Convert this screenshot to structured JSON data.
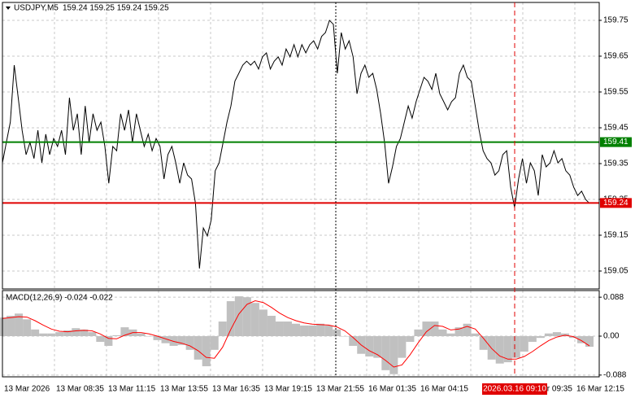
{
  "chart_data": [
    {
      "type": "line",
      "title": "USDJPY,M5",
      "subtitle": "159.24 159.25 159.24 159.25",
      "color": "#000000",
      "values": [
        159.352,
        159.409,
        159.466,
        159.625,
        159.534,
        159.443,
        159.375,
        159.409,
        159.364,
        159.443,
        159.352,
        159.432,
        159.375,
        159.42,
        159.398,
        159.443,
        159.375,
        159.534,
        159.443,
        159.489,
        159.375,
        159.511,
        159.409,
        159.489,
        159.443,
        159.466,
        159.398,
        159.295,
        159.398,
        159.386,
        159.489,
        159.443,
        159.5,
        159.409,
        159.489,
        159.443,
        159.398,
        159.432,
        159.386,
        159.42,
        159.398,
        159.307,
        159.375,
        159.398,
        159.352,
        159.295,
        159.352,
        159.318,
        159.307,
        159.239,
        159.057,
        159.17,
        159.148,
        159.193,
        159.33,
        159.352,
        159.409,
        159.466,
        159.511,
        159.58,
        159.602,
        159.625,
        159.636,
        159.625,
        159.636,
        159.614,
        159.648,
        159.659,
        159.614,
        159.636,
        159.648,
        159.625,
        159.67,
        159.648,
        159.682,
        159.648,
        159.682,
        159.659,
        159.682,
        159.693,
        159.67,
        159.705,
        159.716,
        159.75,
        159.739,
        159.602,
        159.716,
        159.67,
        159.693,
        159.648,
        159.545,
        159.602,
        159.625,
        159.591,
        159.602,
        159.557,
        159.489,
        159.409,
        159.295,
        159.341,
        159.398,
        159.42,
        159.466,
        159.511,
        159.477,
        159.523,
        159.557,
        159.591,
        159.58,
        159.557,
        159.602,
        159.545,
        159.523,
        159.5,
        159.523,
        159.534,
        159.602,
        159.625,
        159.591,
        159.58,
        159.511,
        159.443,
        159.386,
        159.364,
        159.352,
        159.318,
        159.33,
        159.375,
        159.386,
        159.284,
        159.227,
        159.307,
        159.364,
        159.295,
        159.352,
        159.33,
        159.261,
        159.375,
        159.341,
        159.352,
        159.386,
        159.352,
        159.364,
        159.33,
        159.318,
        159.284,
        159.261,
        159.273,
        159.25,
        159.239
      ],
      "ylim": [
        159.0,
        159.8
      ],
      "yticks": [
        159.75,
        159.65,
        159.55,
        159.45,
        159.35,
        159.25,
        159.15,
        159.05
      ],
      "grid": true,
      "levels": [
        {
          "value": 159.41,
          "label": "159.41",
          "color": "#008000"
        },
        {
          "value": 159.24,
          "label": "159.24",
          "color": "#e00000"
        }
      ]
    },
    {
      "type": "macd",
      "title": "MACD(12,26,9) -0.024 -0.022",
      "series": [
        {
          "color": "#c0c0c0",
          "values": [
            0.042,
            0.046,
            0.051,
            0.038,
            0.015,
            0.006,
            0.006,
            0.009,
            0.013,
            0.018,
            0.015,
            0.009,
            -0.013,
            -0.022,
            0.002,
            0.02,
            0.015,
            0.006,
            0.0,
            -0.009,
            -0.016,
            -0.022,
            -0.02,
            -0.031,
            -0.053,
            -0.068,
            -0.031,
            0.033,
            0.079,
            0.09,
            0.088,
            0.075,
            0.06,
            0.046,
            0.033,
            0.033,
            0.028,
            0.024,
            0.024,
            0.028,
            0.024,
            0.015,
            0.0,
            -0.022,
            -0.04,
            -0.046,
            -0.049,
            -0.077,
            -0.086,
            -0.049,
            -0.013,
            0.015,
            0.033,
            0.033,
            0.015,
            0.006,
            0.02,
            0.028,
            0.006,
            -0.031,
            -0.053,
            -0.062,
            -0.059,
            -0.049,
            -0.035,
            -0.013,
            -0.004,
            0.006,
            0.009,
            0.006,
            -0.004,
            -0.016,
            -0.024
          ]
        },
        {
          "color": "#ff0000",
          "values": [
            0.04,
            0.042,
            0.044,
            0.043,
            0.035,
            0.025,
            0.016,
            0.011,
            0.01,
            0.012,
            0.013,
            0.012,
            0.005,
            -0.005,
            -0.006,
            0.002,
            0.008,
            0.008,
            0.005,
            0.0,
            -0.006,
            -0.012,
            -0.016,
            -0.022,
            -0.033,
            -0.048,
            -0.05,
            -0.025,
            0.015,
            0.05,
            0.072,
            0.08,
            0.076,
            0.065,
            0.052,
            0.042,
            0.035,
            0.03,
            0.027,
            0.026,
            0.025,
            0.021,
            0.012,
            -0.003,
            -0.02,
            -0.033,
            -0.042,
            -0.055,
            -0.07,
            -0.065,
            -0.042,
            -0.015,
            0.01,
            0.024,
            0.022,
            0.014,
            0.016,
            0.022,
            0.016,
            -0.005,
            -0.028,
            -0.045,
            -0.052,
            -0.052,
            -0.046,
            -0.035,
            -0.022,
            -0.01,
            -0.002,
            0.002,
            -0.001,
            -0.01,
            -0.022
          ]
        }
      ],
      "ylim": [
        -0.092,
        0.103
      ],
      "yticks": [
        0.088,
        {
          "value": 0,
          "label": "0.00"
        },
        -0.088
      ]
    }
  ],
  "x_axis": {
    "labels": [
      "13 Mar 2026",
      "13 Mar 08:35",
      "13 Mar 11:15",
      "13 Mar 13:55",
      "13 Mar 16:35",
      "13 Mar 19:15",
      "13 Mar 21:55",
      "16 Mar 01:35",
      "16 Mar 04:15",
      null,
      "16 Mar 09:35",
      "16 Mar 12:15"
    ],
    "highlight": "2026.03.16 09:10"
  }
}
